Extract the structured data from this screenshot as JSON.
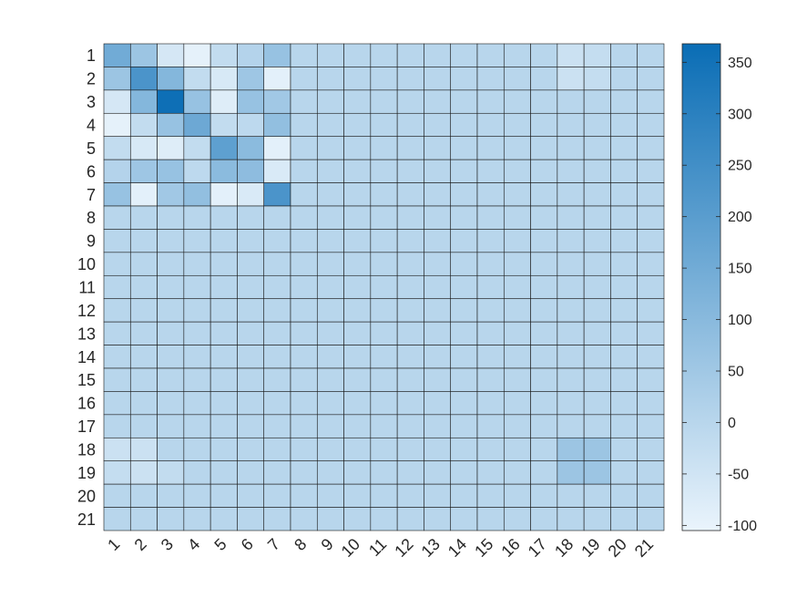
{
  "chart_data": {
    "type": "heatmap",
    "row_labels": [
      "1",
      "2",
      "3",
      "4",
      "5",
      "6",
      "7",
      "8",
      "9",
      "10",
      "11",
      "12",
      "13",
      "14",
      "15",
      "16",
      "17",
      "18",
      "19",
      "20",
      "21"
    ],
    "col_labels": [
      "1",
      "2",
      "3",
      "4",
      "5",
      "6",
      "7",
      "8",
      "9",
      "10",
      "11",
      "12",
      "13",
      "14",
      "15",
      "16",
      "17",
      "18",
      "19",
      "20",
      "21"
    ],
    "values": [
      [
        150,
        60,
        -60,
        -95,
        -20,
        10,
        70,
        0,
        0,
        0,
        0,
        0,
        0,
        0,
        0,
        0,
        0,
        -40,
        -25,
        0,
        0
      ],
      [
        60,
        230,
        110,
        -20,
        -65,
        55,
        -90,
        0,
        0,
        0,
        0,
        0,
        0,
        0,
        0,
        0,
        0,
        -40,
        -25,
        0,
        0
      ],
      [
        -60,
        110,
        360,
        70,
        -80,
        70,
        50,
        0,
        0,
        0,
        0,
        0,
        0,
        0,
        0,
        0,
        0,
        0,
        0,
        0,
        0
      ],
      [
        -95,
        -20,
        70,
        160,
        -20,
        -10,
        80,
        0,
        0,
        0,
        0,
        0,
        0,
        0,
        0,
        0,
        0,
        0,
        0,
        0,
        0
      ],
      [
        -20,
        -65,
        -80,
        -20,
        190,
        95,
        -90,
        0,
        0,
        0,
        0,
        0,
        0,
        0,
        0,
        0,
        0,
        0,
        0,
        0,
        0
      ],
      [
        10,
        55,
        70,
        -10,
        95,
        90,
        -70,
        0,
        0,
        0,
        0,
        0,
        0,
        0,
        0,
        0,
        0,
        0,
        0,
        0,
        0
      ],
      [
        70,
        -90,
        50,
        80,
        -90,
        -70,
        230,
        0,
        0,
        0,
        0,
        0,
        0,
        0,
        0,
        0,
        0,
        0,
        0,
        0,
        0
      ],
      [
        0,
        0,
        0,
        0,
        0,
        0,
        0,
        0,
        0,
        0,
        0,
        0,
        0,
        0,
        0,
        0,
        0,
        0,
        0,
        0,
        0
      ],
      [
        0,
        0,
        0,
        0,
        0,
        0,
        0,
        0,
        0,
        0,
        0,
        0,
        0,
        0,
        0,
        0,
        0,
        0,
        0,
        0,
        0
      ],
      [
        0,
        0,
        0,
        0,
        0,
        0,
        0,
        0,
        0,
        0,
        0,
        0,
        0,
        0,
        0,
        0,
        0,
        0,
        0,
        0,
        0
      ],
      [
        0,
        0,
        0,
        0,
        0,
        0,
        0,
        0,
        0,
        0,
        0,
        0,
        0,
        0,
        0,
        0,
        0,
        0,
        0,
        0,
        0
      ],
      [
        0,
        0,
        0,
        0,
        0,
        0,
        0,
        0,
        0,
        0,
        0,
        0,
        0,
        0,
        0,
        0,
        0,
        0,
        0,
        0,
        0
      ],
      [
        0,
        0,
        0,
        0,
        0,
        0,
        0,
        0,
        0,
        0,
        0,
        0,
        0,
        0,
        0,
        0,
        0,
        0,
        0,
        0,
        0
      ],
      [
        0,
        0,
        0,
        0,
        0,
        0,
        0,
        0,
        0,
        0,
        0,
        0,
        0,
        0,
        0,
        0,
        0,
        0,
        0,
        0,
        0
      ],
      [
        0,
        0,
        0,
        0,
        0,
        0,
        0,
        0,
        0,
        0,
        0,
        0,
        0,
        0,
        0,
        0,
        0,
        0,
        0,
        0,
        0
      ],
      [
        0,
        0,
        0,
        0,
        0,
        0,
        0,
        0,
        0,
        0,
        0,
        0,
        0,
        0,
        0,
        0,
        0,
        0,
        0,
        0,
        0
      ],
      [
        0,
        0,
        0,
        0,
        0,
        0,
        0,
        0,
        0,
        0,
        0,
        0,
        0,
        0,
        0,
        0,
        0,
        0,
        0,
        0,
        0
      ],
      [
        -40,
        -40,
        0,
        0,
        0,
        0,
        0,
        0,
        0,
        0,
        0,
        0,
        0,
        0,
        0,
        0,
        0,
        60,
        60,
        0,
        0
      ],
      [
        -25,
        -40,
        -20,
        0,
        0,
        0,
        0,
        0,
        0,
        0,
        0,
        0,
        0,
        0,
        0,
        0,
        0,
        60,
        60,
        0,
        0
      ],
      [
        0,
        0,
        0,
        0,
        0,
        0,
        0,
        0,
        0,
        0,
        0,
        0,
        0,
        0,
        0,
        0,
        0,
        0,
        0,
        0,
        0
      ],
      [
        0,
        0,
        0,
        0,
        0,
        0,
        0,
        0,
        0,
        0,
        0,
        0,
        0,
        0,
        0,
        0,
        0,
        0,
        0,
        0,
        0
      ]
    ],
    "colorbar": {
      "min": -105,
      "max": 368,
      "ticks": [
        -100,
        -50,
        0,
        50,
        100,
        150,
        200,
        250,
        300,
        350
      ],
      "color_low": "#eaf4fc",
      "color_high": "#0a6db5"
    },
    "title": "",
    "xlabel": "",
    "ylabel": "",
    "grid": true,
    "cell_border_color": "#1a1a1a"
  }
}
